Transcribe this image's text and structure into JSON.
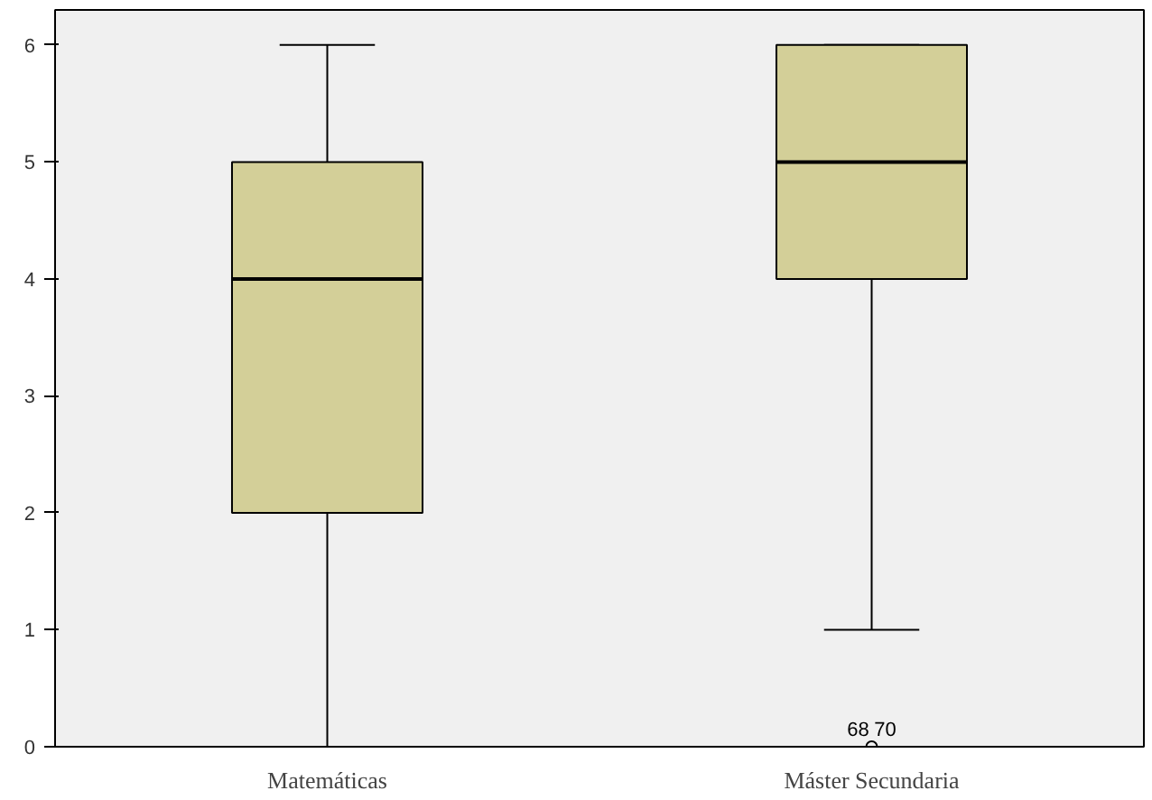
{
  "chart_data": {
    "type": "box",
    "categories": [
      "Matemáticas",
      "Máster Secundaria"
    ],
    "boxes": [
      {
        "low": 0,
        "q1": 2,
        "median": 4,
        "q3": 5,
        "high": 6
      },
      {
        "low": 1,
        "q1": 4,
        "median": 5,
        "q3": 6,
        "high": 6,
        "outliers": [
          0
        ]
      }
    ],
    "color": "#d3cf98",
    "ylim": [
      0,
      6.3
    ],
    "yticks": [
      0,
      1,
      2,
      3,
      4,
      5,
      6
    ],
    "grid": false,
    "annotations": [
      "68",
      "70"
    ]
  }
}
